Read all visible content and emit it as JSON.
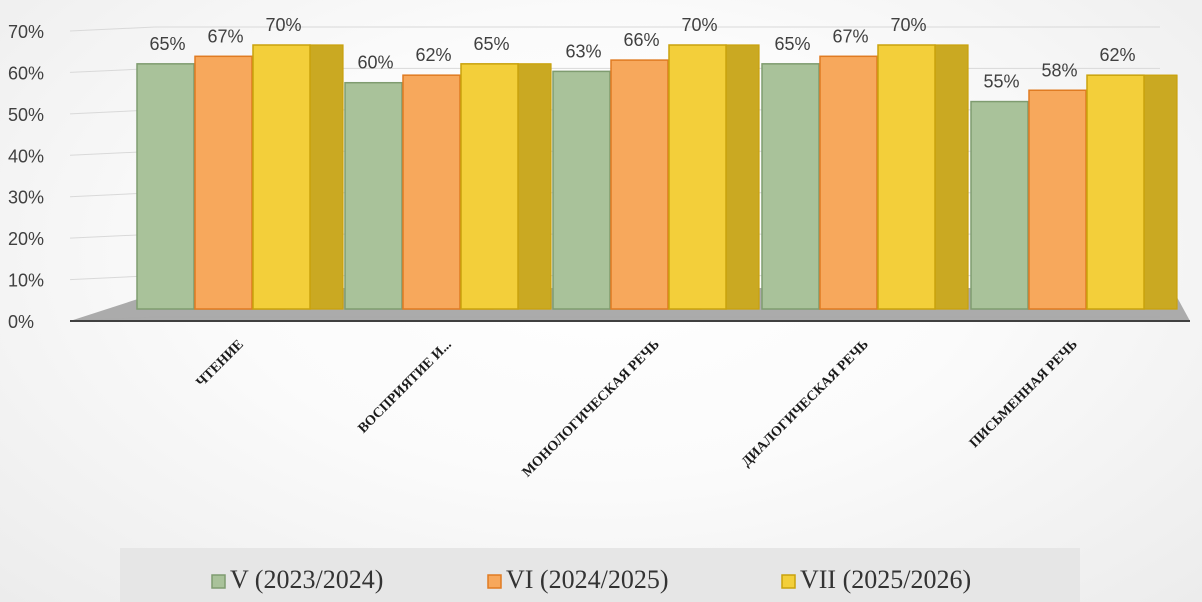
{
  "chart_data": {
    "type": "bar",
    "categories": [
      "ЧТЕНИЕ",
      "ВОСПРИЯТИЕ И...",
      "МОНОЛОГИЧЕСКАЯ РЕЧЬ",
      "ДИАЛОГИЧЕСКАЯ РЕЧЬ",
      "ПИСЬМЕННАЯ РЕЧЬ"
    ],
    "series": [
      {
        "name": "V (2023/2024)",
        "values": [
          65,
          60,
          63,
          65,
          55
        ],
        "labels": [
          "65%",
          "60%",
          "63%",
          "65%",
          "55%"
        ]
      },
      {
        "name": "VI (2024/2025)",
        "values": [
          67,
          62,
          66,
          67,
          58
        ],
        "labels": [
          "67%",
          "62%",
          "66%",
          "67%",
          "58%"
        ]
      },
      {
        "name": "VII (2025/2026)",
        "values": [
          70,
          65,
          70,
          70,
          62
        ],
        "labels": [
          "70%",
          "65%",
          "70%",
          "70%",
          "62%"
        ]
      }
    ],
    "yticks": [
      "0%",
      "10%",
      "20%",
      "30%",
      "40%",
      "50%",
      "60%",
      "70%"
    ],
    "ylim": [
      0,
      70
    ],
    "style": "3d-clustered-column",
    "grid": true,
    "legend_position": "bottom",
    "colors": {
      "series": [
        "#a9c29a",
        "#f7a85c",
        "#f3cf3a"
      ],
      "series_edge": [
        "#7f9c70",
        "#e07b22",
        "#c9a20d"
      ],
      "series_side": [
        "#8da57e",
        "#d98a3f",
        "#caa922"
      ],
      "series_top": [
        "#c6d8b9",
        "#fbc48f",
        "#f9e27a"
      ],
      "floor": "#a6a6a6",
      "legend_bg": "#e6e6e6"
    }
  }
}
